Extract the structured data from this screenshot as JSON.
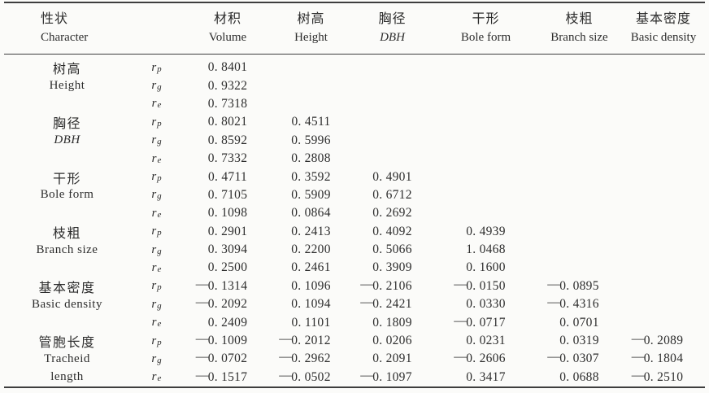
{
  "colors": {
    "background": "#fbfbf9",
    "text": "#2d2d2d",
    "rule": "#3e3e3e"
  },
  "header": {
    "character": {
      "zh": "性状",
      "en": "Character"
    },
    "columns": [
      {
        "zh": "材积",
        "en": "Volume",
        "italic": false
      },
      {
        "zh": "树高",
        "en": "Height",
        "italic": false
      },
      {
        "zh": "胸径",
        "en": "DBH",
        "italic": true
      },
      {
        "zh": "干形",
        "en": "Bole form",
        "italic": false
      },
      {
        "zh": "枝粗",
        "en": "Branch size",
        "italic": false
      },
      {
        "zh": "基本密度",
        "en": "Basic density",
        "italic": false
      }
    ]
  },
  "r_symbol": "r",
  "groups": [
    {
      "labels": [
        "树高",
        "Height",
        ""
      ],
      "italic_line": -1,
      "rows": [
        {
          "r": "p",
          "values": [
            "0. 8401",
            "",
            "",
            "",
            "",
            ""
          ]
        },
        {
          "r": "g",
          "values": [
            "0. 9322",
            "",
            "",
            "",
            "",
            ""
          ]
        },
        {
          "r": "e",
          "values": [
            "0. 7318",
            "",
            "",
            "",
            "",
            ""
          ]
        }
      ]
    },
    {
      "labels": [
        "胸径",
        "DBH",
        ""
      ],
      "italic_line": 1,
      "rows": [
        {
          "r": "p",
          "values": [
            "0. 8021",
            "0. 4511",
            "",
            "",
            "",
            ""
          ]
        },
        {
          "r": "g",
          "values": [
            "0. 8592",
            "0. 5996",
            "",
            "",
            "",
            ""
          ]
        },
        {
          "r": "e",
          "values": [
            "0. 7332",
            "0. 2808",
            "",
            "",
            "",
            ""
          ]
        }
      ]
    },
    {
      "labels": [
        "干形",
        "Bole form",
        ""
      ],
      "italic_line": -1,
      "rows": [
        {
          "r": "p",
          "values": [
            "0. 4711",
            "0. 3592",
            "0. 4901",
            "",
            "",
            ""
          ]
        },
        {
          "r": "g",
          "values": [
            "0. 7105",
            "0. 5909",
            "0. 6712",
            "",
            "",
            ""
          ]
        },
        {
          "r": "e",
          "values": [
            "0. 1098",
            "0. 0864",
            "0. 2692",
            "",
            "",
            ""
          ]
        }
      ]
    },
    {
      "labels": [
        "枝粗",
        "Branch size",
        ""
      ],
      "italic_line": -1,
      "rows": [
        {
          "r": "p",
          "values": [
            "0. 2901",
            "0. 2413",
            "0. 4092",
            "0. 4939",
            "",
            ""
          ]
        },
        {
          "r": "g",
          "values": [
            "0. 3094",
            "0. 2200",
            "0. 5066",
            "1. 0468",
            "",
            ""
          ]
        },
        {
          "r": "e",
          "values": [
            "0. 2500",
            "0. 2461",
            "0. 3909",
            "0. 1600",
            "",
            ""
          ]
        }
      ]
    },
    {
      "labels": [
        "基本密度",
        "Basic density",
        ""
      ],
      "italic_line": -1,
      "rows": [
        {
          "r": "p",
          "values": [
            "—0. 1314",
            "0. 1096",
            "—0. 2106",
            "—0. 0150",
            "—0. 0895",
            ""
          ]
        },
        {
          "r": "g",
          "values": [
            "—0. 2092",
            "0. 1094",
            "—0. 2421",
            "0. 0330",
            "—0. 4316",
            ""
          ]
        },
        {
          "r": "e",
          "values": [
            "0. 2409",
            "0. 1101",
            "0. 1809",
            "—0. 0717",
            "0. 0701",
            ""
          ]
        }
      ]
    },
    {
      "labels": [
        "管胞长度",
        "Tracheid",
        "length"
      ],
      "italic_line": -1,
      "rows": [
        {
          "r": "p",
          "values": [
            "—0. 1009",
            "—0. 2012",
            "0. 0206",
            "0. 0231",
            "0. 0319",
            "—0. 2089"
          ]
        },
        {
          "r": "g",
          "values": [
            "—0. 0702",
            "—0. 2962",
            "0. 2091",
            "—0. 2606",
            "—0. 0307",
            "—0. 1804"
          ]
        },
        {
          "r": "e",
          "values": [
            "—0. 1517",
            "—0. 0502",
            "—0. 1097",
            "0. 3417",
            "0. 0688",
            "—0. 2510"
          ]
        }
      ]
    }
  ]
}
